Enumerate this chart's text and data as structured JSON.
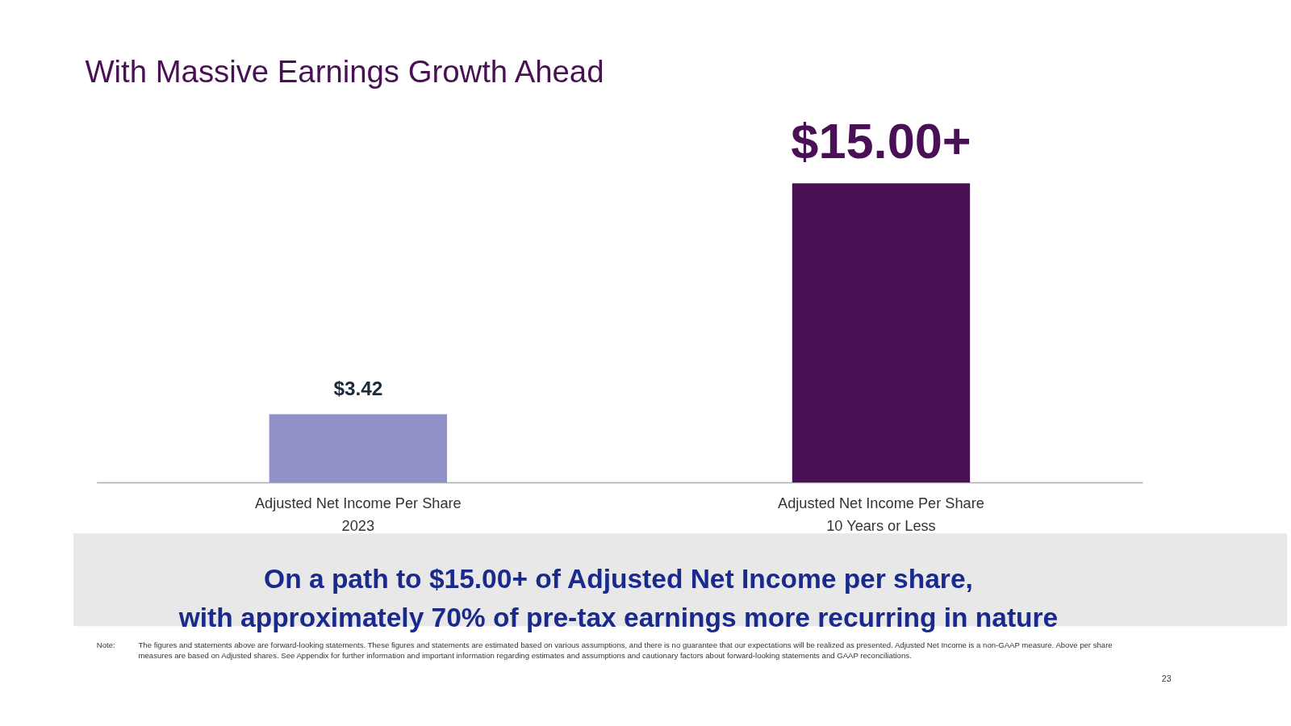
{
  "chart_data": {
    "type": "bar",
    "title": "With Massive Earnings Growth Ahead",
    "categories": [
      "Adjusted Net Income Per Share\n2023",
      "Adjusted Net Income Per Share\n10 Years or Less"
    ],
    "values": [
      3.42,
      15.0
    ],
    "colors": [
      "#9191c9",
      "#4a1056"
    ],
    "value_labels": [
      "$3.42",
      "$15.00+"
    ],
    "annotations": [
      "On a path to $15.00+ of Adjusted Net Income per share,\nwith approximately 70% of pre-tax earnings more recurring in nature",
      "Note:\tThe figures and statements above are forward-looking statements. These figures and statements are estimated based on various assumptions, and there is no guarantee that our expectations will be realized as presented. Adjusted Net Income is a non-GAAP measure. Above per share measures are based on Adjusted shares. See Appendix for further information and important information regarding estimates and assumptions and cautionary factors about forward-looking statements and GAAP reconciliations.",
      "23"
    ]
  }
}
